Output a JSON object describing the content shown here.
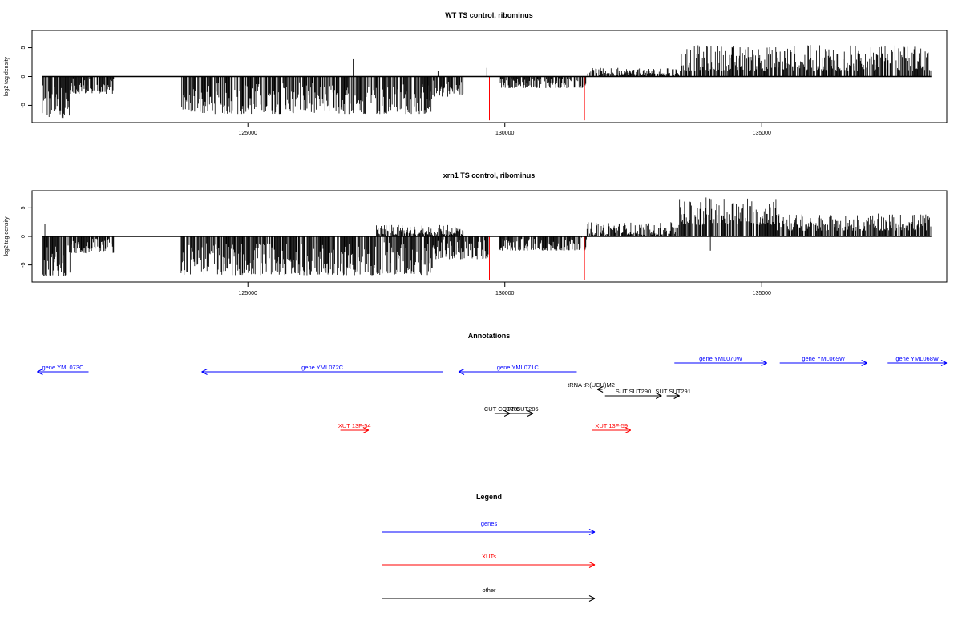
{
  "chart_data": [
    {
      "type": "bar",
      "title": "WT TS control, ribominus",
      "ylabel": "log2 tag density",
      "xlabel": "",
      "xlim": [
        120800,
        138600
      ],
      "ylim": [
        -8,
        8
      ],
      "x_ticks": [
        125000,
        130000,
        135000
      ],
      "x_tick_labels": [
        "125000",
        "130000",
        "135000"
      ],
      "y_ticks": [
        -5,
        0,
        5
      ],
      "y_tick_labels": [
        "-5",
        "0",
        "5"
      ],
      "grid": false,
      "series": [
        {
          "color": "#000000",
          "segments": [
            {
              "from": 121000,
              "to": 121550,
              "min": -7.2,
              "max": -1.5
            },
            {
              "from": 121550,
              "to": 122400,
              "min": -3.0,
              "max": -0.3
            },
            {
              "from": 123700,
              "to": 128600,
              "min": -6.5,
              "max": -1.0
            },
            {
              "from": 128600,
              "to": 129200,
              "min": -3.5,
              "max": -0.5
            },
            {
              "from": 129900,
              "to": 131600,
              "min": -2.0,
              "max": -0.2
            },
            {
              "from": 131600,
              "to": 133400,
              "min": 0.3,
              "max": 1.5
            },
            {
              "from": 133400,
              "to": 138300,
              "min": 1.0,
              "max": 5.5
            }
          ],
          "points": [
            {
              "x": 127050,
              "y": 3.0
            },
            {
              "x": 128500,
              "y": -5.5
            },
            {
              "x": 128700,
              "y": 1.0
            },
            {
              "x": 129650,
              "y": 1.5
            },
            {
              "x": 132200,
              "y": 1.5
            },
            {
              "x": 132800,
              "y": 1.0
            }
          ]
        },
        {
          "color": "#ff0000",
          "points": [
            {
              "x": 129700,
              "y": -7.6
            },
            {
              "x": 131550,
              "y": -7.6
            }
          ]
        }
      ]
    },
    {
      "type": "bar",
      "title": "xrn1 TS control, ribominus",
      "ylabel": "log2 tag density",
      "xlabel": "",
      "xlim": [
        120800,
        138600
      ],
      "ylim": [
        -8,
        8
      ],
      "x_ticks": [
        125000,
        130000,
        135000
      ],
      "x_tick_labels": [
        "125000",
        "130000",
        "135000"
      ],
      "y_ticks": [
        -5,
        0,
        5
      ],
      "y_tick_labels": [
        "-5",
        "0",
        "5"
      ],
      "grid": false,
      "series": [
        {
          "color": "#000000",
          "segments": [
            {
              "from": 121000,
              "to": 121550,
              "min": -7.0,
              "max": -1.5
            },
            {
              "from": 121550,
              "to": 122400,
              "min": -3.0,
              "max": -0.3
            },
            {
              "from": 123700,
              "to": 128600,
              "min": -6.8,
              "max": -1.0
            },
            {
              "from": 128600,
              "to": 129700,
              "min": -4.0,
              "max": -0.5
            },
            {
              "from": 127500,
              "to": 129200,
              "min": 0.3,
              "max": 2.0
            },
            {
              "from": 129900,
              "to": 131600,
              "min": -2.5,
              "max": -0.2
            },
            {
              "from": 131600,
              "to": 133400,
              "min": 0.3,
              "max": 2.5
            },
            {
              "from": 133400,
              "to": 135300,
              "min": 2.0,
              "max": 7.0
            },
            {
              "from": 135300,
              "to": 138300,
              "min": 1.0,
              "max": 4.0
            }
          ],
          "points": [
            {
              "x": 121050,
              "y": 2.2
            },
            {
              "x": 134000,
              "y": -2.5
            }
          ]
        },
        {
          "color": "#ff0000",
          "points": [
            {
              "x": 129700,
              "y": -7.6
            },
            {
              "x": 131550,
              "y": -7.6
            }
          ]
        }
      ]
    },
    {
      "type": "diagram",
      "title": "Annotations",
      "xlim": [
        120800,
        138600
      ],
      "features": [
        {
          "label": "gene YML073C",
          "from": 121900,
          "to": 120900,
          "row": 1,
          "class": "genes"
        },
        {
          "label": "gene YML072C",
          "from": 128800,
          "to": 124100,
          "row": 1,
          "class": "genes"
        },
        {
          "label": "gene YML071C",
          "from": 131400,
          "to": 129100,
          "row": 1,
          "class": "genes"
        },
        {
          "label": "gene YML070W",
          "from": 133300,
          "to": 135100,
          "row": 0,
          "class": "genes"
        },
        {
          "label": "gene YML069W",
          "from": 135350,
          "to": 137050,
          "row": 0,
          "class": "genes"
        },
        {
          "label": "gene YML068W",
          "from": 137450,
          "to": 138600,
          "row": 0,
          "class": "genes"
        },
        {
          "label": "tRNA tR(UCU)M2",
          "from": 131900,
          "to": 131800,
          "row": 2,
          "class": "other"
        },
        {
          "label": "SUT SUT290",
          "from": 131950,
          "to": 133050,
          "row": 3,
          "class": "other"
        },
        {
          "label": "SUT SUT291",
          "from": 133150,
          "to": 133400,
          "row": 3,
          "class": "other"
        },
        {
          "label": "CUT CUT285",
          "from": 129800,
          "to": 130100,
          "row": 4,
          "class": "other"
        },
        {
          "label": "CUT CUT286",
          "from": 130050,
          "to": 130550,
          "row": 4,
          "class": "other"
        },
        {
          "label": "XUT 13F-54",
          "from": 126800,
          "to": 127350,
          "row": 5,
          "class": "XUTs"
        },
        {
          "label": "XUT 13F-59",
          "from": 131700,
          "to": 132450,
          "row": 5,
          "class": "XUTs"
        }
      ]
    }
  ],
  "legend": {
    "title": "Legend",
    "items": [
      {
        "label": "genes",
        "color": "#0000ff"
      },
      {
        "label": "XUTs",
        "color": "#ff0000"
      },
      {
        "label": "other",
        "color": "#000000"
      }
    ]
  },
  "colors": {
    "genes": "#0000ff",
    "XUTs": "#ff0000",
    "other": "#000000"
  }
}
